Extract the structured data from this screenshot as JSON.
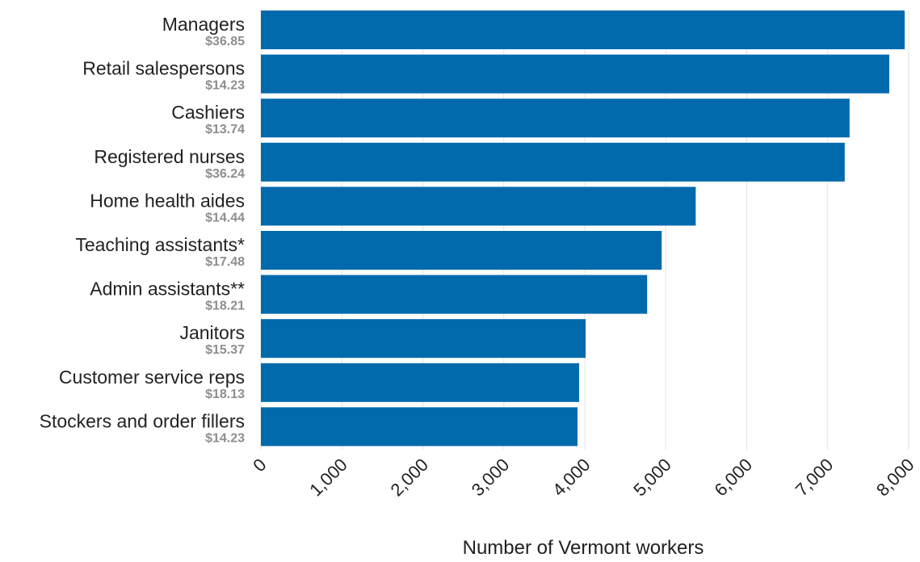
{
  "chart_data": {
    "type": "bar",
    "orientation": "horizontal",
    "categories": [
      "Managers",
      "Retail salespersons",
      "Cashiers",
      "Registered nurses",
      "Home health aides",
      "Teaching assistants*",
      "Admin assistants**",
      "Janitors",
      "Customer service reps",
      "Stockers and order fillers"
    ],
    "wages": [
      "$36.85",
      "$14.23",
      "$13.74",
      "$36.24",
      "$14.44",
      "$17.48",
      "$18.21",
      "$15.37",
      "$18.13",
      "$14.23"
    ],
    "values": [
      7950,
      7760,
      7270,
      7210,
      5370,
      4950,
      4770,
      4010,
      3930,
      3910
    ],
    "xlabel": "Number of Vermont workers",
    "ylabel": "",
    "xlim": [
      0,
      8000
    ],
    "xticks": [
      0,
      1000,
      2000,
      3000,
      4000,
      5000,
      6000,
      7000,
      8000
    ],
    "xtick_labels": [
      "0",
      "1,000",
      "2,000",
      "3,000",
      "4,000",
      "5,000",
      "6,000",
      "7,000",
      "8,000"
    ],
    "grid": "vertical",
    "bar_color": "#006aad",
    "wage_color": "#8e8e8e"
  }
}
